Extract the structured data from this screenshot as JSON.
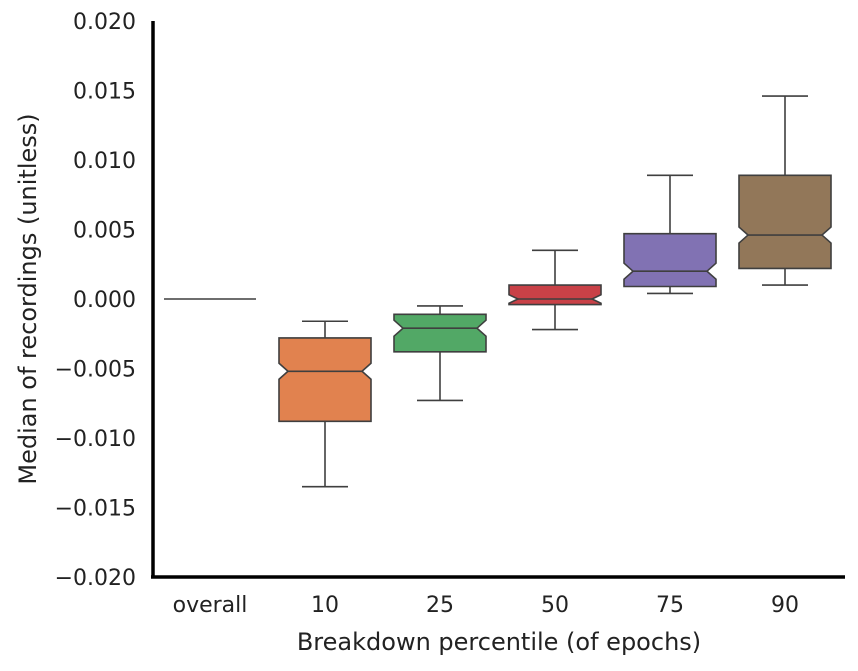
{
  "chart_data": {
    "type": "box",
    "title": "",
    "xlabel": "Breakdown percentile (of epochs)",
    "ylabel": "Median of recordings (unitless)",
    "ylim": [
      -0.02,
      0.02
    ],
    "yticks": [
      "0.020",
      "0.015",
      "0.010",
      "0.005",
      "0.000",
      "−0.005",
      "−0.010",
      "−0.015",
      "−0.020"
    ],
    "ytick_values": [
      0.02,
      0.015,
      0.01,
      0.005,
      0.0,
      -0.005,
      -0.01,
      -0.015,
      -0.02
    ],
    "categories": [
      "overall",
      "10",
      "25",
      "50",
      "75",
      "90"
    ],
    "boxes": [
      {
        "category": "overall",
        "whisker_low": 0.0,
        "q1": 0.0,
        "median": 0.0,
        "q3": 0.0,
        "whisker_high": 0.0,
        "color": "#ffffff"
      },
      {
        "category": "10",
        "whisker_low": -0.0135,
        "q1": -0.0088,
        "median": -0.0052,
        "q3": -0.0028,
        "whisker_high": -0.0016,
        "color": "#e1824f"
      },
      {
        "category": "25",
        "whisker_low": -0.0073,
        "q1": -0.0038,
        "median": -0.0021,
        "q3": -0.0011,
        "whisker_high": -0.0005,
        "color": "#52a866"
      },
      {
        "category": "50",
        "whisker_low": -0.0022,
        "q1": -0.0004,
        "median": 0.0,
        "q3": 0.001,
        "whisker_high": 0.0035,
        "color": "#c94147"
      },
      {
        "category": "75",
        "whisker_low": 0.0004,
        "q1": 0.0009,
        "median": 0.002,
        "q3": 0.0047,
        "whisker_high": 0.0089,
        "color": "#8172b3"
      },
      {
        "category": "90",
        "whisker_low": 0.001,
        "q1": 0.0022,
        "median": 0.0046,
        "q3": 0.0089,
        "whisker_high": 0.0146,
        "color": "#927759"
      }
    ],
    "grid": false,
    "notched": true
  }
}
